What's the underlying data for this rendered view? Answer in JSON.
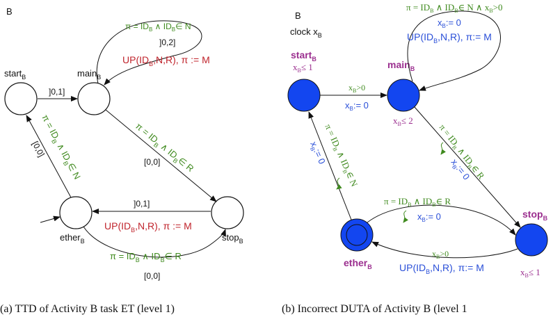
{
  "left": {
    "automaton_name": "B",
    "states": {
      "start": "start",
      "main": "main",
      "ether": "ether",
      "stop": "stop",
      "sub": "B"
    },
    "loop_guard": "π = ID",
    "loop_guard_tail": " ∧ ID",
    "loop_guard_end": "∈ N",
    "loop_interval": "]0,2]",
    "loop_update": "UP(ID",
    "loop_update_mid": ",N,R), π := M",
    "start_main_interval": "]0,1]",
    "main_stop_guard": "π = ID",
    "main_stop_guard_tail": " ∧ ID",
    "main_stop_guard_end": "∈ R",
    "main_stop_interval": "[0,0]",
    "ether_start_guard": "π = ID",
    "ether_start_guard_tail": " ∧ ID",
    "ether_start_guard_end": "∈ N",
    "ether_start_interval": "[0,0]",
    "stop_ether_interval": "]0,1]",
    "stop_ether_update": "UP(ID",
    "stop_ether_update_mid": ",N,R), π := M",
    "ether_stop_guard": "π = ID",
    "ether_stop_guard_tail": " ∧ ID",
    "ether_stop_guard_end": "∈ R",
    "ether_stop_interval": "[0,0]",
    "caption": "(a) TTD of Activity B task ET (level 1)"
  },
  "right": {
    "automaton_name": "B",
    "clock_decl": "clock x",
    "states": {
      "start": "start",
      "main": "main",
      "ether": "ether",
      "stop": "stop",
      "sub": "B"
    },
    "start_invariant": "x",
    "start_invariant_tail": "≤ 1",
    "main_invariant": "x",
    "main_invariant_tail": "≤ 2",
    "stop_invariant": "x",
    "stop_invariant_tail": "≤ 1",
    "loop_guard": "π = ID",
    "loop_guard_tail": " ∧ ID",
    "loop_guard_end": "∈ N ∧ x",
    "loop_guard_clock": ">0",
    "loop_reset": "x",
    "loop_reset_tail": ":= 0",
    "loop_update": "UP(ID",
    "loop_update_mid": ",N,R), π:= M",
    "start_main_guard": "x",
    "start_main_guard_tail": ">0",
    "start_main_reset": "x",
    "start_main_reset_tail": ":= 0",
    "main_stop_guard": "π = ID",
    "main_stop_guard_tail": " ∧ ID",
    "main_stop_guard_end": "∈ R",
    "main_stop_reset": "x",
    "main_stop_reset_tail": ":= 0",
    "ether_start_guard": "π = ID",
    "ether_start_guard_tail": " ∧ ID",
    "ether_start_guard_end": "∈ N",
    "ether_start_reset": "x",
    "ether_start_reset_tail": ":= 0",
    "ether_stop_guard": "π = ID",
    "ether_stop_guard_tail": " ∧ ID",
    "ether_stop_guard_end": "∈ R",
    "ether_stop_reset": "x",
    "ether_stop_reset_tail": ":= 0",
    "stop_ether_guard": "x",
    "stop_ether_guard_tail": ">0",
    "stop_ether_update": "UP(ID",
    "stop_ether_update_mid": ",N,R), π:= M",
    "caption": "(b) Incorrect DUTA of Activity B (level 1"
  },
  "colors": {
    "guard": "#3f8a1e",
    "update": "#c0242c",
    "reset": "#2a4fd8",
    "state_name": "#9b2f8f",
    "state_fill": "#1346f0"
  }
}
